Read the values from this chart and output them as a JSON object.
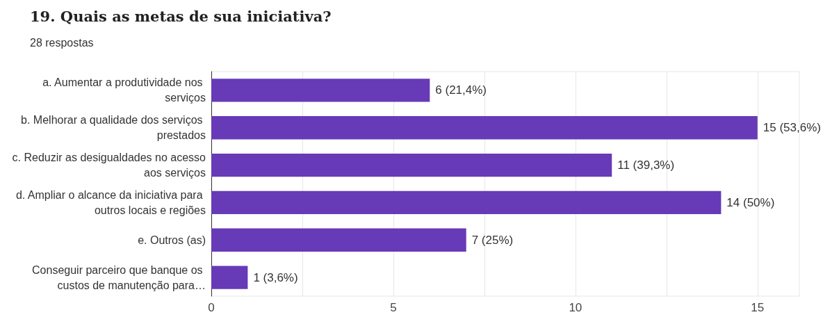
{
  "chart_data": {
    "type": "bar",
    "orientation": "horizontal",
    "title": "19. Quais as metas de sua iniciativa?",
    "subtitle": "28 respostas",
    "categories": [
      "a. Aumentar a produtividade nos serviços",
      "b. Melhorar a qualidade dos serviços prestados",
      "c. Reduzir as desigualdades no acesso aos serviços",
      "d. Ampliar o alcance da iniciativa para outros locais e regiões",
      "e. Outros (as)",
      "Conseguir parceiro que banque os custos de manutenção para…"
    ],
    "values": [
      6,
      15,
      11,
      14,
      7,
      1
    ],
    "value_labels": [
      "6 (21,4%)",
      "15 (53,6%)",
      "11 (39,3%)",
      "14 (50%)",
      "7 (25%)",
      "1 (3,6%)"
    ],
    "color": "#673ab7",
    "xlim": [
      0,
      16.15
    ],
    "xticks": [
      0,
      {
        "value": 2.5,
        "label": null
      },
      5,
      {
        "value": 7.5,
        "label": null
      },
      10,
      {
        "value": 12.5,
        "label": null
      },
      15
    ],
    "grid": "x"
  }
}
